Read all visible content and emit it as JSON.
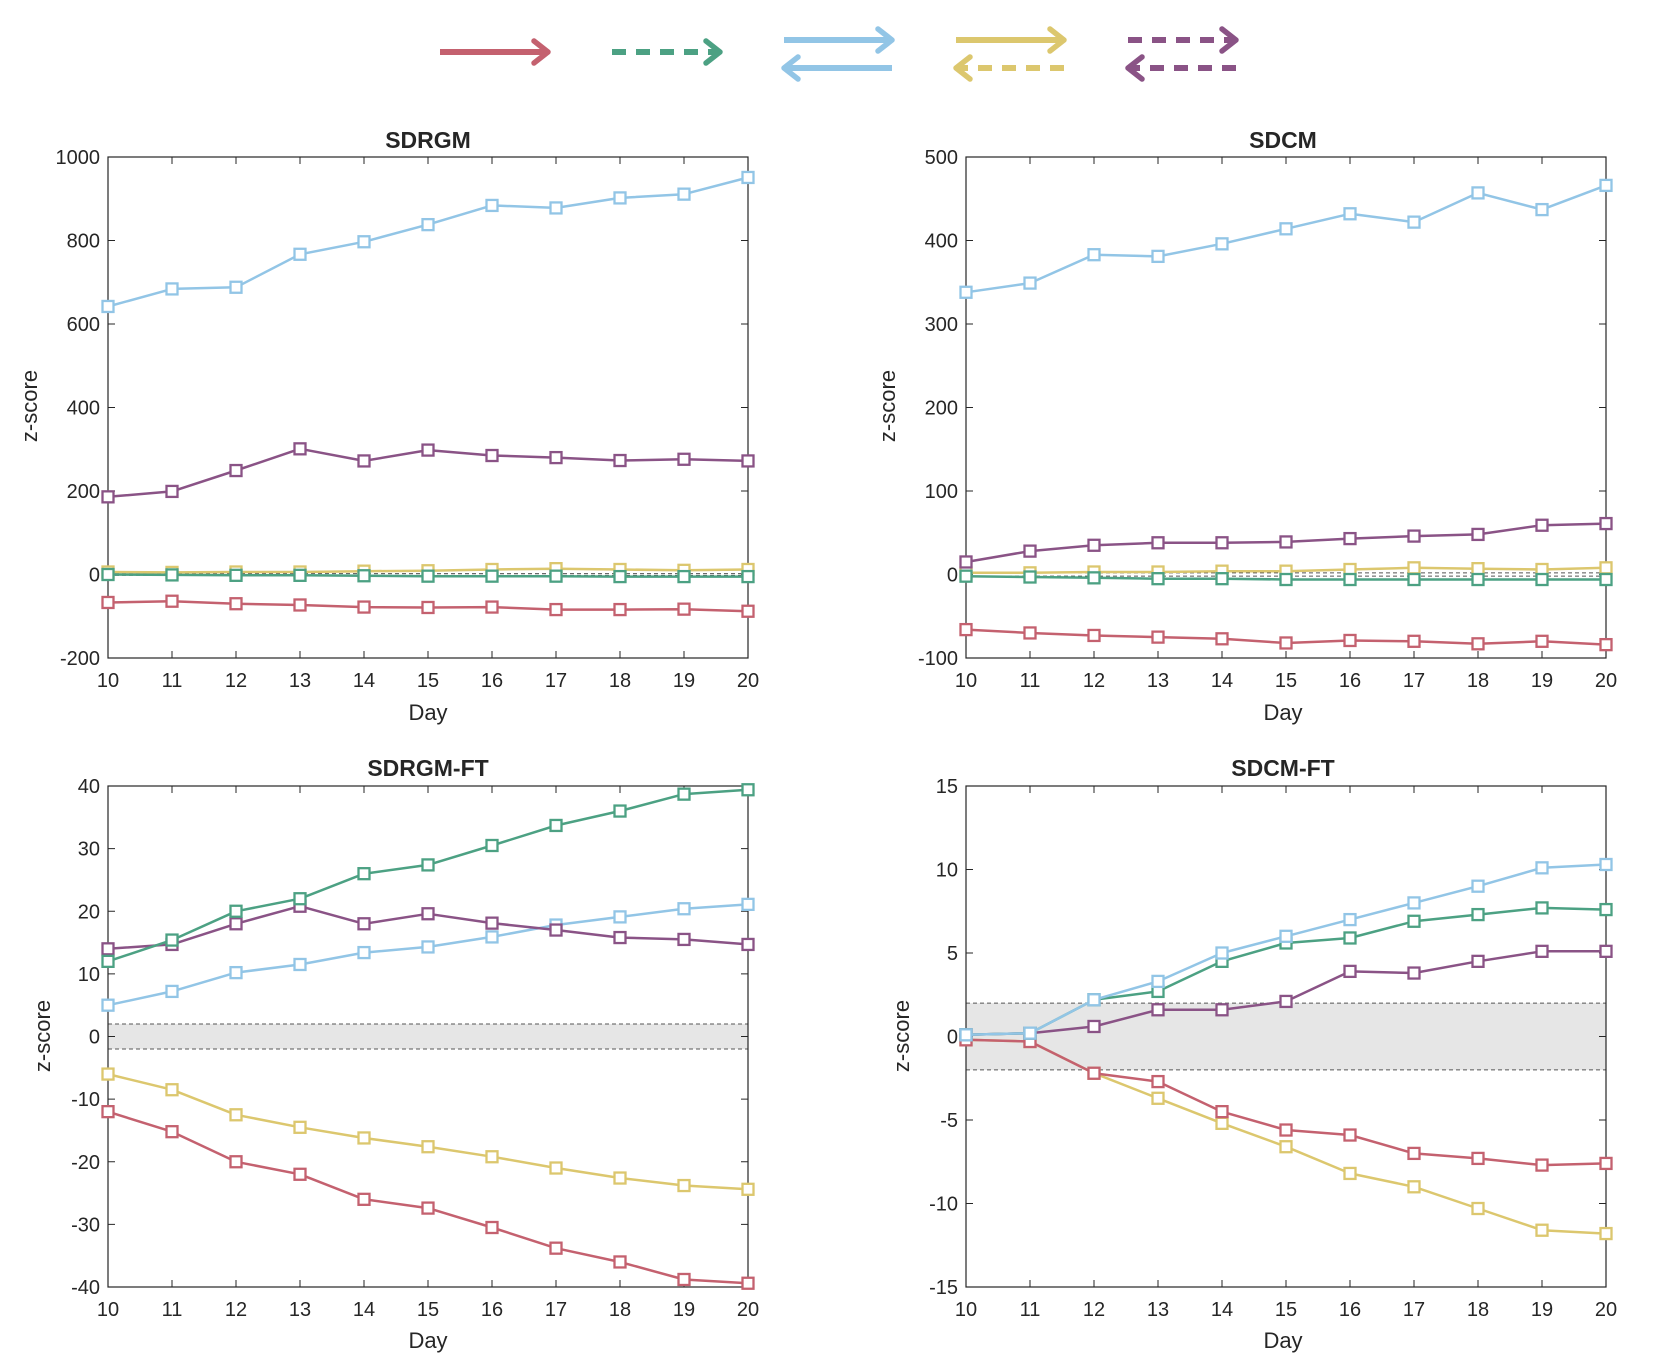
{
  "legend": {
    "items": [
      {
        "name": "legend-red-solid-arrow",
        "color": "#c4616f",
        "style": "single-solid"
      },
      {
        "name": "legend-green-dashed-arrow",
        "color": "#4ca183",
        "style": "single-dashed"
      },
      {
        "name": "legend-blue-solid-bidirectional",
        "color": "#92c5e6",
        "style": "double-solid"
      },
      {
        "name": "legend-yellow-solid-dashed-bidirectional",
        "color": "#dcc76e",
        "style": "double-solid-dashed"
      },
      {
        "name": "legend-purple-dashed-bidirectional",
        "color": "#8a5386",
        "style": "double-dashed"
      }
    ]
  },
  "chart_data": [
    {
      "type": "line",
      "title": "SDRGM",
      "xlabel": "Day",
      "ylabel": "z-score",
      "x": [
        10,
        11,
        12,
        13,
        14,
        15,
        16,
        17,
        18,
        19,
        20
      ],
      "xlim": [
        10,
        20
      ],
      "ylim": [
        -200,
        1000
      ],
      "yticks": [
        -200,
        0,
        200,
        400,
        600,
        800,
        1000
      ],
      "ytick_labels": [
        "-200",
        "0",
        "200",
        "400",
        "600",
        "800",
        "1000"
      ],
      "xtick_labels": [
        "10",
        "11",
        "12",
        "13",
        "14",
        "15",
        "16",
        "17",
        "18",
        "19",
        "20"
      ],
      "band": [
        -2,
        2
      ],
      "band_fill": false,
      "series": [
        {
          "name": "red",
          "color": "#c4616f",
          "values": [
            -67,
            -64,
            -70,
            -73,
            -78,
            -79,
            -78,
            -84,
            -84,
            -83,
            -88
          ]
        },
        {
          "name": "yellow",
          "color": "#dcc76e",
          "values": [
            6,
            5,
            6,
            6,
            8,
            9,
            12,
            14,
            12,
            10,
            12
          ]
        },
        {
          "name": "green",
          "color": "#4ca183",
          "values": [
            0,
            -1,
            -2,
            -2,
            -3,
            -4,
            -4,
            -4,
            -5,
            -5,
            -5
          ]
        },
        {
          "name": "purple",
          "color": "#8a5386",
          "values": [
            186,
            199,
            249,
            301,
            272,
            298,
            285,
            280,
            273,
            276,
            272
          ]
        },
        {
          "name": "blue",
          "color": "#92c5e6",
          "values": [
            642,
            684,
            688,
            767,
            797,
            838,
            884,
            878,
            902,
            911,
            951
          ]
        }
      ]
    },
    {
      "type": "line",
      "title": "SDCM",
      "xlabel": "Day",
      "ylabel": "z-score",
      "x": [
        10,
        11,
        12,
        13,
        14,
        15,
        16,
        17,
        18,
        19,
        20
      ],
      "xlim": [
        10,
        20
      ],
      "ylim": [
        -100,
        500
      ],
      "yticks": [
        -100,
        0,
        100,
        200,
        300,
        400,
        500
      ],
      "ytick_labels": [
        "-100",
        "0",
        "100",
        "200",
        "300",
        "400",
        "500"
      ],
      "xtick_labels": [
        "10",
        "11",
        "12",
        "13",
        "14",
        "15",
        "16",
        "17",
        "18",
        "19",
        "20"
      ],
      "band": [
        -2,
        2
      ],
      "band_fill": false,
      "series": [
        {
          "name": "red",
          "color": "#c4616f",
          "values": [
            -66,
            -70,
            -73,
            -75,
            -77,
            -82,
            -79,
            -80,
            -83,
            -80,
            -84
          ]
        },
        {
          "name": "yellow",
          "color": "#dcc76e",
          "values": [
            2,
            2,
            3,
            3,
            4,
            4,
            6,
            8,
            7,
            6,
            8
          ]
        },
        {
          "name": "green",
          "color": "#4ca183",
          "values": [
            -2,
            -3,
            -4,
            -5,
            -5,
            -6,
            -6,
            -6,
            -6,
            -6,
            -6
          ]
        },
        {
          "name": "purple",
          "color": "#8a5386",
          "values": [
            15,
            28,
            35,
            38,
            38,
            39,
            43,
            46,
            48,
            59,
            61
          ]
        },
        {
          "name": "blue",
          "color": "#92c5e6",
          "values": [
            338,
            349,
            383,
            381,
            396,
            414,
            432,
            422,
            457,
            437,
            466
          ]
        }
      ]
    },
    {
      "type": "line",
      "title": "SDRGM-FT",
      "xlabel": "Day",
      "ylabel": "z-score",
      "x": [
        10,
        11,
        12,
        13,
        14,
        15,
        16,
        17,
        18,
        19,
        20
      ],
      "xlim": [
        10,
        20
      ],
      "ylim": [
        -40,
        40
      ],
      "yticks": [
        -40,
        -30,
        -20,
        -10,
        0,
        10,
        20,
        30,
        40
      ],
      "ytick_labels": [
        "-40",
        "-30",
        "-20",
        "-10",
        "0",
        "10",
        "20",
        "30",
        "40"
      ],
      "xtick_labels": [
        "10",
        "11",
        "12",
        "13",
        "14",
        "15",
        "16",
        "17",
        "18",
        "19",
        "20"
      ],
      "band": [
        -2,
        2
      ],
      "band_fill": true,
      "series": [
        {
          "name": "red",
          "color": "#c4616f",
          "values": [
            -12,
            -15.2,
            -20,
            -22,
            -26,
            -27.4,
            -30.5,
            -33.8,
            -36,
            -38.8,
            -39.4
          ]
        },
        {
          "name": "yellow",
          "color": "#dcc76e",
          "values": [
            -6,
            -8.5,
            -12.5,
            -14.5,
            -16.2,
            -17.6,
            -19.2,
            -21,
            -22.6,
            -23.8,
            -24.4
          ]
        },
        {
          "name": "blue",
          "color": "#92c5e6",
          "values": [
            5,
            7.2,
            10.2,
            11.5,
            13.4,
            14.3,
            15.9,
            17.8,
            19.1,
            20.4,
            21.1
          ]
        },
        {
          "name": "purple",
          "color": "#8a5386",
          "values": [
            14,
            14.7,
            18,
            20.8,
            18,
            19.6,
            18.1,
            17,
            15.8,
            15.5,
            14.7
          ]
        },
        {
          "name": "green",
          "color": "#4ca183",
          "values": [
            12,
            15.4,
            20,
            22,
            26,
            27.4,
            30.5,
            33.7,
            36,
            38.7,
            39.4
          ]
        }
      ]
    },
    {
      "type": "line",
      "title": "SDCM-FT",
      "xlabel": "Day",
      "ylabel": "z-score",
      "x": [
        10,
        11,
        12,
        13,
        14,
        15,
        16,
        17,
        18,
        19,
        20
      ],
      "xlim": [
        10,
        20
      ],
      "ylim": [
        -15,
        15
      ],
      "yticks": [
        -15,
        -10,
        -5,
        0,
        5,
        10,
        15
      ],
      "ytick_labels": [
        "-15",
        "-10",
        "-5",
        "0",
        "5",
        "10",
        "15"
      ],
      "xtick_labels": [
        "10",
        "11",
        "12",
        "13",
        "14",
        "15",
        "16",
        "17",
        "18",
        "19",
        "20"
      ],
      "band": [
        -2,
        2
      ],
      "band_fill": true,
      "series": [
        {
          "name": "yellow",
          "color": "#dcc76e",
          "values": [
            -0.2,
            -0.3,
            -2.2,
            -3.7,
            -5.2,
            -6.6,
            -8.2,
            -9,
            -10.3,
            -11.6,
            -11.8
          ]
        },
        {
          "name": "red",
          "color": "#c4616f",
          "values": [
            -0.2,
            -0.3,
            -2.2,
            -2.7,
            -4.5,
            -5.6,
            -5.9,
            -7,
            -7.3,
            -7.7,
            -7.6
          ]
        },
        {
          "name": "purple",
          "color": "#8a5386",
          "values": [
            0.1,
            0.2,
            0.6,
            1.6,
            1.6,
            2.1,
            3.9,
            3.8,
            4.5,
            5.1,
            5.1
          ]
        },
        {
          "name": "green",
          "color": "#4ca183",
          "values": [
            0.1,
            0.2,
            2.2,
            2.7,
            4.5,
            5.6,
            5.9,
            6.9,
            7.3,
            7.7,
            7.6
          ]
        },
        {
          "name": "blue",
          "color": "#92c5e6",
          "values": [
            0.1,
            0.2,
            2.2,
            3.3,
            5,
            6,
            7,
            8,
            9,
            10.1,
            10.3
          ]
        }
      ]
    }
  ]
}
